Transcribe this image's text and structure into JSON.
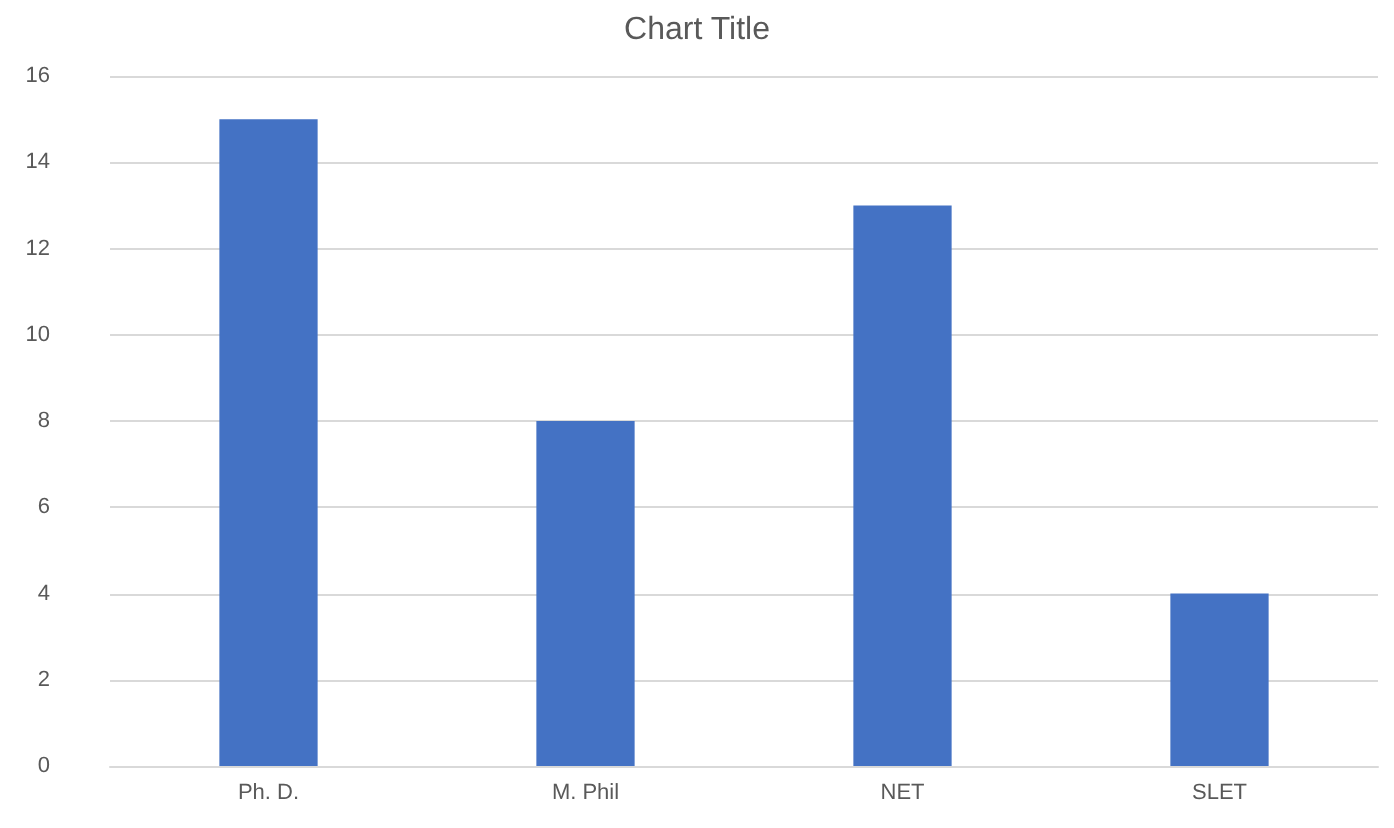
{
  "chart_data": {
    "type": "bar",
    "title": "Chart Title",
    "categories": [
      "Ph. D.",
      "M. Phil",
      "NET",
      "SLET"
    ],
    "values": [
      15,
      8,
      13,
      4
    ],
    "color": "#4472c4",
    "ylim": [
      0,
      16
    ],
    "yticks": [
      0,
      2,
      4,
      6,
      8,
      10,
      12,
      14,
      16
    ],
    "grid": "y"
  }
}
